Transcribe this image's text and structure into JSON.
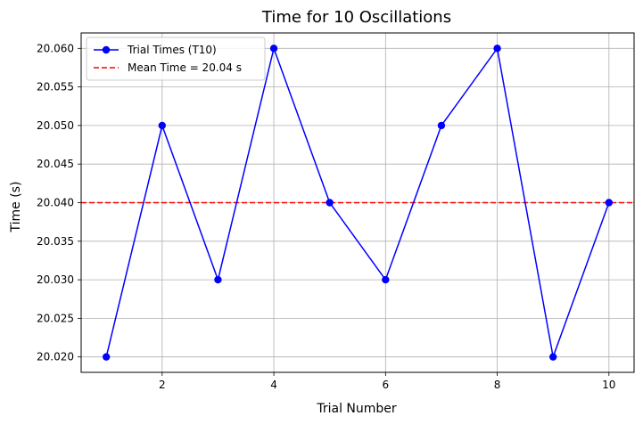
{
  "chart_data": {
    "type": "line",
    "title": "Time for 10 Oscillations",
    "xlabel": "Trial Number",
    "ylabel": "Time (s)",
    "x": [
      1,
      2,
      3,
      4,
      5,
      6,
      7,
      8,
      9,
      10
    ],
    "series": [
      {
        "name": "Trial Times (T10)",
        "values": [
          20.02,
          20.05,
          20.03,
          20.06,
          20.04,
          20.03,
          20.05,
          20.06,
          20.02,
          20.04
        ],
        "color": "#0000ff",
        "marker": "circle",
        "linestyle": "solid"
      }
    ],
    "reference_lines": [
      {
        "name": "Mean Time = 20.04 s",
        "y": 20.04,
        "color": "#ff0000",
        "linestyle": "dashed"
      }
    ],
    "xlim": [
      0.55,
      10.45
    ],
    "ylim": [
      20.018,
      20.062
    ],
    "xticks": [
      2,
      4,
      6,
      8,
      10
    ],
    "xtick_labels": [
      "2",
      "4",
      "6",
      "8",
      "10"
    ],
    "yticks": [
      20.02,
      20.025,
      20.03,
      20.035,
      20.04,
      20.045,
      20.05,
      20.055,
      20.06
    ],
    "ytick_labels": [
      "20.020",
      "20.025",
      "20.030",
      "20.035",
      "20.040",
      "20.045",
      "20.050",
      "20.055",
      "20.060"
    ],
    "grid": true,
    "legend_position": "top-left"
  }
}
